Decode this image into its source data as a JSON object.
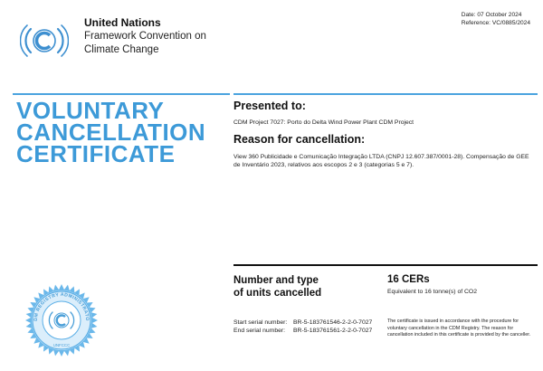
{
  "org": {
    "name": "United Nations",
    "line2": "Framework Convention on",
    "line3": "Climate Change"
  },
  "meta": {
    "date": "Date: 07 October 2024",
    "reference": "Reference: VC/0885/2024"
  },
  "certificate": {
    "title_lines": [
      "VOLUNTARY",
      "CANCELLATION",
      "CERTIFICATE"
    ],
    "presented_heading": "Presented to:",
    "presented_value": "CDM Project 7027: Porto do Delta Wind Power Plant CDM Project",
    "reason_heading": "Reason for cancellation:",
    "reason_value": "View 360 Publicidade e Comunicação Integração LTDA (CNPJ 12.607.387/0001-28). Compensação de GEE de Inventário 2023, relativos aos escopos 2 e 3 (categorias 5 e 7)."
  },
  "units": {
    "label_line1": "Number and type",
    "label_line2": "of units cancelled",
    "amount": "16 CERs",
    "equivalent": "Equivalent to 16 tonne(s) of CO2",
    "start_label": "Start serial number:",
    "start_value": "BR-5-183761546-2-2-0-7027",
    "end_label": "End serial number:",
    "end_value": "BR-5-183761561-2-2-0-7027",
    "note": "The certificate is issued in accordance with the procedure for voluntary cancellation in the CDM Registry. The reason for cancellation included in this certificate is provided by the canceller."
  },
  "seal": {
    "ring_text": "CDM REGISTRY ADMINISTRATOR",
    "bottom_text": "UNFCCC"
  },
  "colors": {
    "accent_blue": "#3d9ad8",
    "seal_blue": "#5aaee6"
  }
}
